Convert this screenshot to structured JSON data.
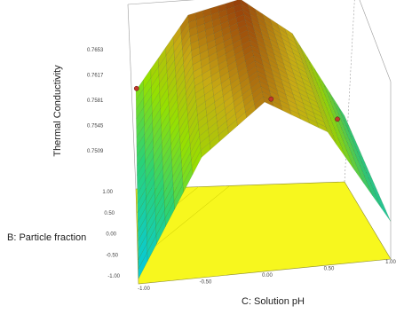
{
  "chart_data": {
    "type": "surface3d",
    "zlabel": "Thermal Conductivity",
    "ylabel": "B: Particle fraction",
    "xlabel": "C: Solution pH",
    "z_ticks": [
      "0.7653",
      "0.7617",
      "0.7581",
      "0.7545",
      "0.7509"
    ],
    "b_ticks": [
      "1.00",
      "0.50",
      "0.00",
      "-0.50",
      "-1.00"
    ],
    "c_ticks": [
      "-1.00",
      "-0.50",
      "0.00",
      "0.50",
      "1.00"
    ],
    "x_range": [
      -1,
      1
    ],
    "y_range": [
      -1,
      1
    ],
    "z_range": [
      0.7509,
      0.7653
    ],
    "surface": {
      "rows_b": [
        -1.0,
        1.0
      ],
      "cols_c": [
        -1.0,
        -0.5,
        0.0,
        0.5,
        1.0
      ],
      "z": [
        [
          0.7513,
          0.7602,
          0.764,
          0.7612,
          0.7538
        ],
        [
          0.7585,
          0.7642,
          0.7653,
          0.7625,
          0.756
        ]
      ]
    },
    "design_points": [
      {
        "c": -1.0,
        "b": 0.5,
        "z": 0.7605
      },
      {
        "c": 0.2,
        "b": 0.3,
        "z": 0.7598
      },
      {
        "c": 0.85,
        "b": 0.6,
        "z": 0.757
      }
    ],
    "colors": {
      "surface_low": "#00c8f0",
      "surface_mid": "#90e000",
      "surface_high": "#9a3000",
      "floor": "#f7f71e",
      "point": "#c0392b"
    }
  }
}
